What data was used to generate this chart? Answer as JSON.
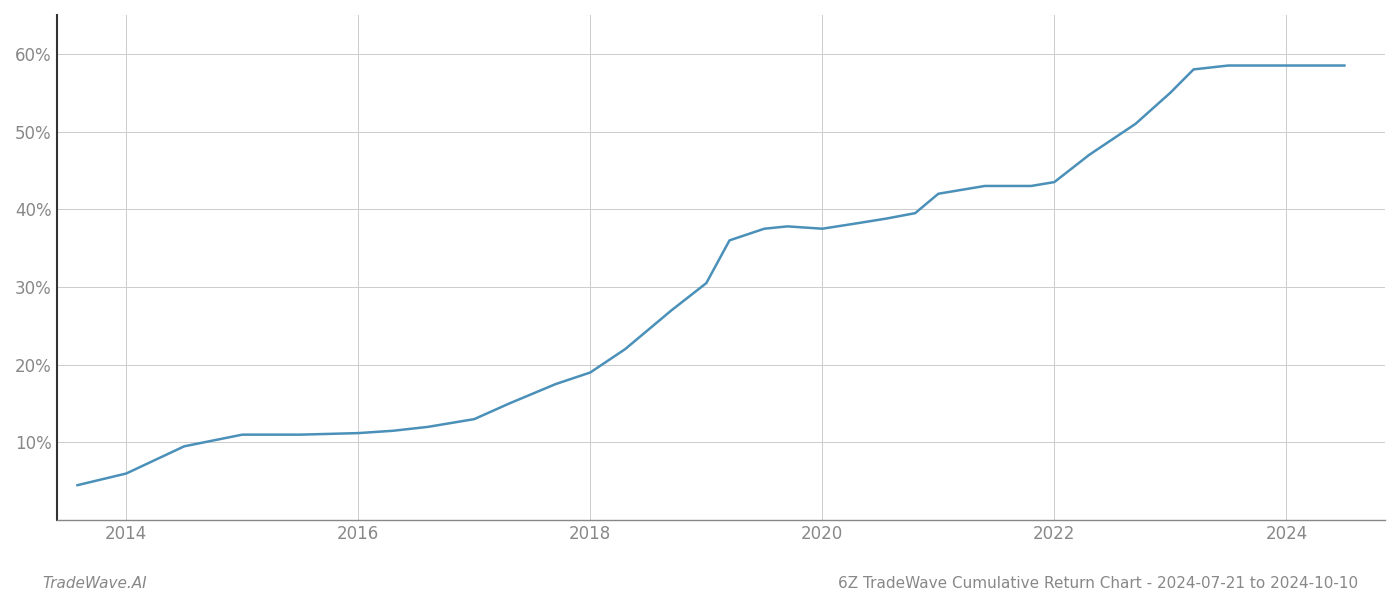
{
  "title": "6Z TradeWave Cumulative Return Chart - 2024-07-21 to 2024-10-10",
  "watermark": "TradeWave.AI",
  "line_color": "#4a90b8",
  "background_color": "#ffffff",
  "grid_color": "#cccccc",
  "x_years": [
    2013.58,
    2014.0,
    2014.5,
    2015.0,
    2015.5,
    2016.0,
    2016.3,
    2016.6,
    2017.0,
    2017.3,
    2017.7,
    2018.0,
    2018.3,
    2018.7,
    2019.0,
    2019.2,
    2019.5,
    2019.7,
    2020.0,
    2020.3,
    2020.55,
    2020.8,
    2021.0,
    2021.4,
    2021.8,
    2022.0,
    2022.3,
    2022.7,
    2023.0,
    2023.2,
    2023.5,
    2023.8,
    2024.0,
    2024.5
  ],
  "y_values": [
    4.5,
    6.0,
    9.5,
    11.0,
    11.0,
    11.2,
    11.5,
    12.0,
    13.0,
    15.0,
    17.5,
    19.0,
    22.0,
    27.0,
    30.5,
    36.0,
    37.5,
    37.8,
    37.5,
    38.2,
    38.8,
    39.5,
    42.0,
    43.0,
    43.0,
    43.5,
    47.0,
    51.0,
    55.0,
    58.0,
    58.5,
    58.5,
    58.5,
    58.5
  ],
  "xlim": [
    2013.4,
    2024.85
  ],
  "ylim": [
    0,
    65
  ],
  "yticks": [
    10,
    20,
    30,
    40,
    50,
    60
  ],
  "xticks": [
    2014,
    2016,
    2018,
    2020,
    2022,
    2024
  ],
  "tick_label_color": "#888888",
  "axis_color": "#888888",
  "left_spine_color": "#333333",
  "title_fontsize": 11,
  "watermark_fontsize": 11,
  "line_width": 1.8
}
